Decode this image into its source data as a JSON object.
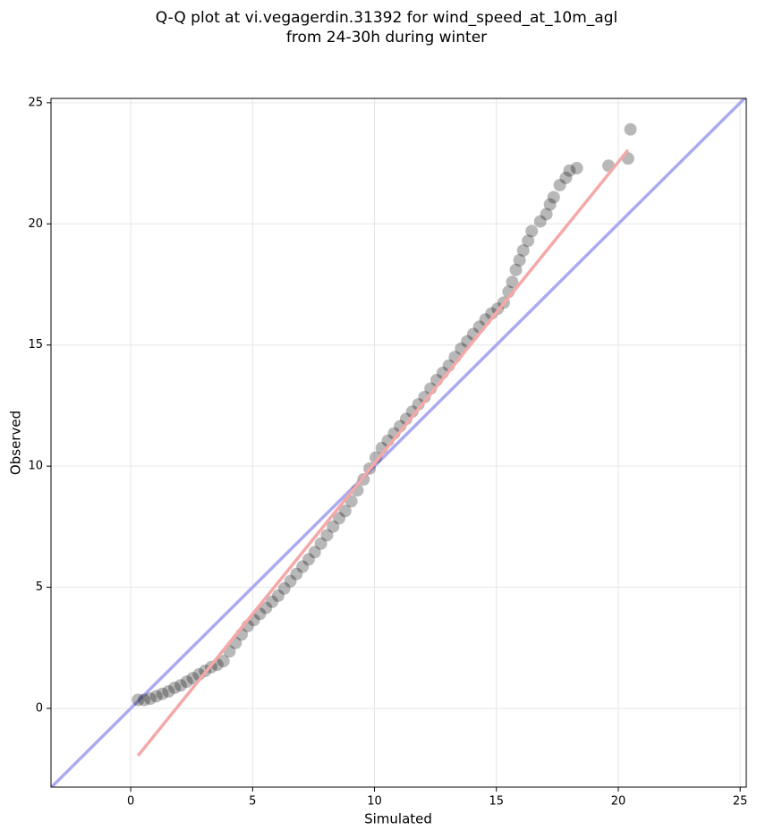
{
  "chart_data": {
    "type": "scatter",
    "title": [
      "Q-Q plot at vi.vegagerdin.31392 for wind_speed_at_10m_agl",
      "from 24-30h during winter"
    ],
    "xlabel": "Simulated",
    "ylabel": "Observed",
    "xlim": [
      -3.27,
      25.25
    ],
    "ylim": [
      -3.25,
      25.18
    ],
    "xticks": [
      0,
      5,
      10,
      15,
      20,
      25
    ],
    "yticks": [
      0,
      5,
      10,
      15,
      20,
      25
    ],
    "grid": true,
    "series": [
      {
        "color": "#000000",
        "x": [
          0.3,
          0.55,
          0.8,
          1.05,
          1.3,
          1.55,
          1.8,
          2.05,
          2.3,
          2.55,
          2.8,
          3.05,
          3.3,
          3.55,
          3.8,
          4.05,
          4.3,
          4.55,
          4.8,
          5.05,
          5.3,
          5.55,
          5.8,
          6.05,
          6.3,
          6.55,
          6.8,
          7.05,
          7.3,
          7.55,
          7.8,
          8.05,
          8.3,
          8.55,
          8.8,
          9.05,
          9.3,
          9.55,
          9.8,
          10.05,
          10.3,
          10.55,
          10.8,
          11.05,
          11.3,
          11.55,
          11.8,
          12.05,
          12.3,
          12.55,
          12.8,
          13.05,
          13.3,
          13.55,
          13.8,
          14.05,
          14.3,
          14.55,
          14.8,
          15.05,
          15.3,
          15.5,
          15.65,
          15.8,
          15.95,
          16.1,
          16.3,
          16.45,
          16.8,
          17.05,
          17.2,
          17.35,
          17.6,
          17.85,
          18.0,
          18.3,
          19.6,
          20.4,
          20.5
        ],
        "values": [
          0.35,
          0.35,
          0.4,
          0.5,
          0.6,
          0.7,
          0.85,
          0.95,
          1.1,
          1.25,
          1.4,
          1.55,
          1.7,
          1.8,
          1.95,
          2.35,
          2.7,
          3.05,
          3.4,
          3.65,
          3.9,
          4.15,
          4.4,
          4.65,
          4.95,
          5.25,
          5.55,
          5.85,
          6.15,
          6.45,
          6.8,
          7.15,
          7.5,
          7.85,
          8.15,
          8.55,
          9.0,
          9.45,
          9.9,
          10.35,
          10.75,
          11.05,
          11.35,
          11.65,
          11.95,
          12.25,
          12.55,
          12.85,
          13.2,
          13.55,
          13.85,
          14.15,
          14.5,
          14.85,
          15.15,
          15.45,
          15.75,
          16.05,
          16.3,
          16.5,
          16.75,
          17.2,
          17.6,
          18.1,
          18.5,
          18.9,
          19.3,
          19.7,
          20.1,
          20.4,
          20.8,
          21.1,
          21.6,
          21.9,
          22.2,
          22.3,
          22.4,
          22.7,
          23.9
        ]
      }
    ],
    "identity_line": {
      "color": "#aaaaf0",
      "x": [
        -3.27,
        25.25
      ],
      "y": [
        -3.27,
        25.25
      ]
    },
    "fit_line": {
      "color": "#f5a8a8",
      "x": [
        0.3,
        20.4
      ],
      "y": [
        -1.95,
        23.05
      ]
    }
  }
}
